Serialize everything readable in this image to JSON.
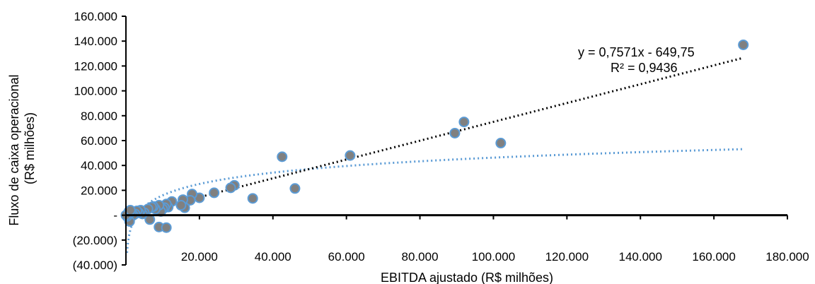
{
  "chart_data": {
    "type": "scatter",
    "xlabel": "EBITDA ajustado (R$ milhões)",
    "ylabel": [
      "Fluxo de caixa operacional",
      "(R$ milhões)"
    ],
    "xlim": [
      0,
      180000
    ],
    "ylim": [
      -40000,
      160000
    ],
    "xticks": [
      {
        "value": 20000,
        "label": "20.000"
      },
      {
        "value": 40000,
        "label": "40.000"
      },
      {
        "value": 60000,
        "label": "60.000"
      },
      {
        "value": 80000,
        "label": "80.000"
      },
      {
        "value": 100000,
        "label": "100.000"
      },
      {
        "value": 120000,
        "label": "120.000"
      },
      {
        "value": 140000,
        "label": "140.000"
      },
      {
        "value": 160000,
        "label": "160.000"
      },
      {
        "value": 180000,
        "label": "180.000"
      }
    ],
    "yticks": [
      {
        "value": 160000,
        "label": "160.000"
      },
      {
        "value": 140000,
        "label": "140.000"
      },
      {
        "value": 120000,
        "label": "120.000"
      },
      {
        "value": 100000,
        "label": "100.000"
      },
      {
        "value": 80000,
        "label": "80.000"
      },
      {
        "value": 60000,
        "label": "60.000"
      },
      {
        "value": 40000,
        "label": "40.000"
      },
      {
        "value": 20000,
        "label": "20.000"
      },
      {
        "value": 0,
        "label": "-"
      },
      {
        "value": -20000,
        "label": "(20.000)"
      },
      {
        "value": -40000,
        "label": "(40.000)"
      }
    ],
    "grid": false,
    "points": [
      [
        168000,
        137000
      ],
      [
        92000,
        75000
      ],
      [
        89500,
        66000
      ],
      [
        102000,
        58000
      ],
      [
        61000,
        48000
      ],
      [
        42500,
        47000
      ],
      [
        46000,
        21500
      ],
      [
        34500,
        13500
      ],
      [
        29500,
        24000
      ],
      [
        28500,
        22000
      ],
      [
        24000,
        18000
      ],
      [
        20000,
        14000
      ],
      [
        18000,
        17000
      ],
      [
        17500,
        12000
      ],
      [
        16000,
        6000
      ],
      [
        15500,
        12500
      ],
      [
        15000,
        8000
      ],
      [
        12500,
        11000
      ],
      [
        11500,
        6500
      ],
      [
        11000,
        9000
      ],
      [
        10500,
        6000
      ],
      [
        10000,
        5000
      ],
      [
        9500,
        3000
      ],
      [
        9000,
        8000
      ],
      [
        8000,
        5000
      ],
      [
        7500,
        7000
      ],
      [
        7000,
        6500
      ],
      [
        6000,
        5000
      ],
      [
        5000,
        2000
      ],
      [
        4500,
        1000
      ],
      [
        4000,
        4000
      ],
      [
        3500,
        2000
      ],
      [
        3000,
        3500
      ],
      [
        2500,
        1000
      ],
      [
        2000,
        0
      ],
      [
        1500,
        2500
      ],
      [
        1000,
        -5000
      ],
      [
        800,
        3000
      ],
      [
        500,
        1000
      ],
      [
        300,
        -1000
      ],
      [
        0,
        0
      ],
      [
        1200,
        4000
      ],
      [
        6500,
        -3500
      ],
      [
        9000,
        -9500
      ],
      [
        11000,
        -10000
      ]
    ],
    "linear_trend": {
      "slope": 0.7571,
      "intercept": -649.75
    },
    "log_trend": true,
    "equation_label": "y = 0,7571x - 649,75",
    "r2_label": "R² = 0,9436",
    "colors": {
      "point_fill": "#808080",
      "point_stroke": "#5b9bd5",
      "linear_trend": "#000000",
      "log_trend": "#5b9bd5",
      "axis": "#000000"
    }
  }
}
